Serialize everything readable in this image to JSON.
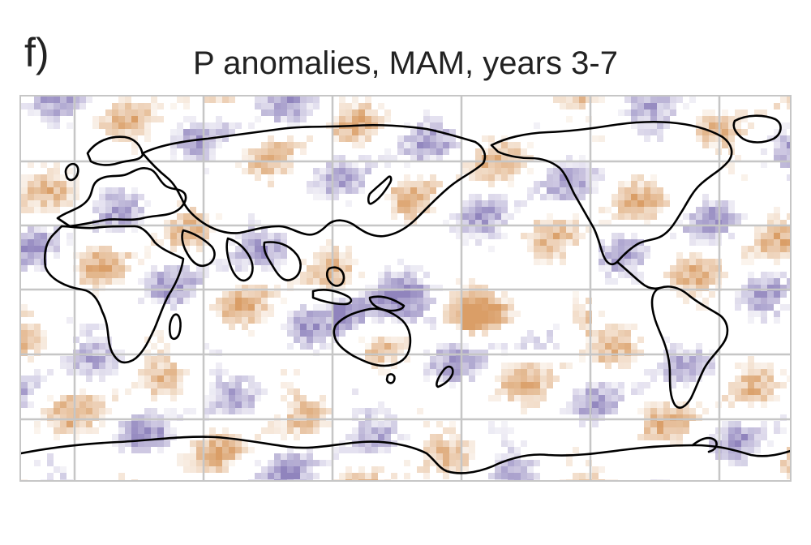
{
  "figure": {
    "panel_label": "f)",
    "title": "P anomalies, MAM, years 3-7"
  },
  "map": {
    "projection": "equirectangular, Pacific-centered (shifted longitudes)",
    "gridlines": "on",
    "colorscale": {
      "positive_color": "#5b4a9e",
      "negative_color": "#c8701f",
      "neutral_color": "#ffffff"
    },
    "coastline_color": "#000000",
    "gridline_color": "#c6c6c6"
  }
}
